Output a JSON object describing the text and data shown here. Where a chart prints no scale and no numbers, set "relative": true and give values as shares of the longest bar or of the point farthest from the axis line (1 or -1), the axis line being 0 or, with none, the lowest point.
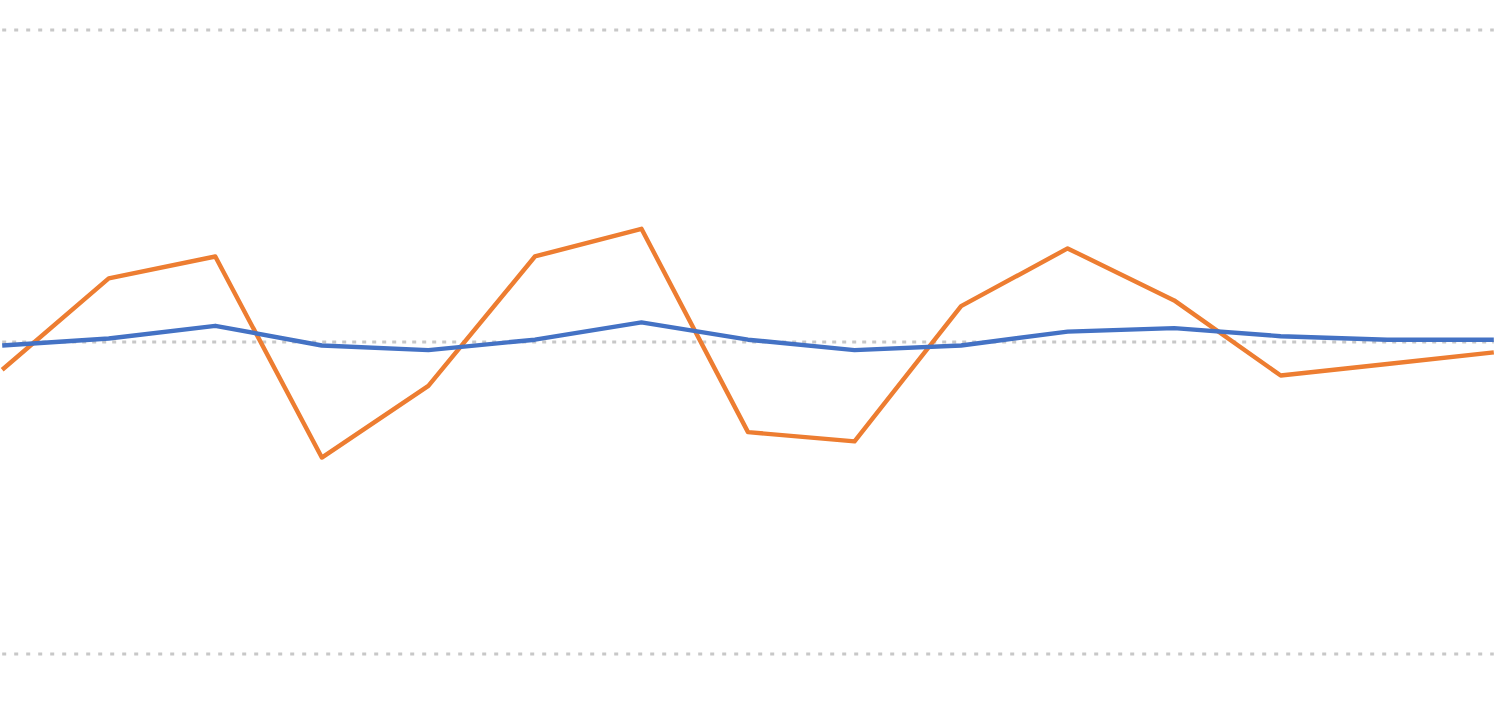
{
  "chart_data": {
    "type": "line",
    "relative": true,
    "ref_lines": [
      {
        "axis": "y",
        "value": 0,
        "color": "#c8c8c8",
        "line_style": "dotted"
      }
    ],
    "legend": false,
    "marker": "none",
    "line_style": "solid",
    "categories": [
      null,
      null,
      null,
      null,
      null,
      null,
      null,
      null,
      null,
      null,
      null,
      null,
      null,
      null,
      null
    ],
    "series": [
      {
        "color": "#4472c4",
        "values": [
          -0.03,
          0.03,
          0.14,
          -0.03,
          -0.07,
          0.02,
          0.17,
          0.02,
          -0.07,
          -0.03,
          0.09,
          0.12,
          0.05,
          0.02,
          0.02
        ]
      },
      {
        "color": "#ed7d31",
        "values": [
          -0.24,
          0.55,
          0.74,
          -1,
          -0.38,
          0.74,
          0.98,
          -0.78,
          -0.86,
          0.31,
          0.81,
          0.36,
          -0.29,
          -0.19,
          -0.09
        ]
      }
    ]
  }
}
